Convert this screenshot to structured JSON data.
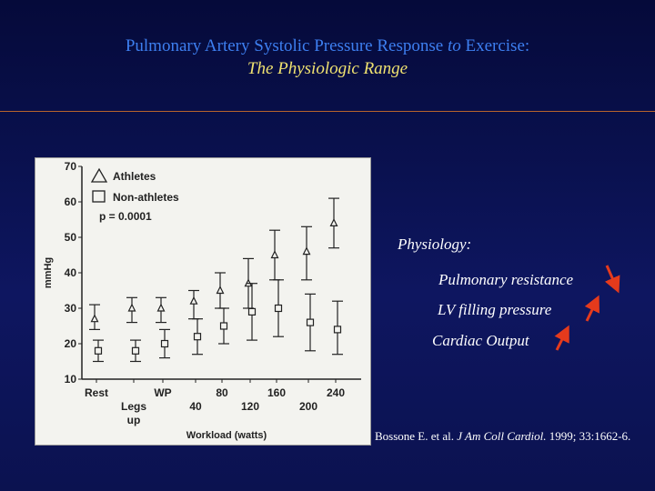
{
  "slide": {
    "title_part1": "Pulmonary Artery Systolic Pressure Response ",
    "title_italic": "to",
    "title_part2": " Exercise:",
    "subtitle": "The Physiologic Range",
    "physiology_heading": "Physiology:",
    "items": [
      {
        "label": "Pulmonary resistance",
        "arrow": "down"
      },
      {
        "label": "LV filling pressure",
        "arrow": "up"
      },
      {
        "label": "Cardiac Output",
        "arrow": "up"
      }
    ],
    "citation_pre": "Bossone E. et al. ",
    "citation_journal": "J Am Coll Cardiol.",
    "citation_post": " 1999; 33:1662-6."
  },
  "colors": {
    "title": "#3d7ff0",
    "subtitle": "#f0e270",
    "divider": "#b8642c",
    "arrow": "#e53a1c"
  },
  "chart_data": {
    "type": "scatter",
    "ylabel": "mmHg",
    "xlabel": "Workload (watts)",
    "ylim": [
      10,
      70
    ],
    "yticks": [
      10,
      20,
      30,
      40,
      50,
      60,
      70
    ],
    "xtick_labels": [
      "Rest",
      "Legs up",
      "WP",
      "40",
      "80",
      "120",
      "160",
      "200",
      "240"
    ],
    "annotation": "p = 0.0001",
    "legend": [
      {
        "name": "Athletes",
        "marker": "triangle"
      },
      {
        "name": "Non-athletes",
        "marker": "square"
      }
    ],
    "series": [
      {
        "name": "Athletes",
        "marker": "triangle",
        "x": [
          "Rest",
          "Legs up",
          "WP",
          "40",
          "80",
          "120",
          "160",
          "200",
          "240"
        ],
        "y": [
          27,
          30,
          30,
          32,
          35,
          37,
          45,
          46,
          54
        ],
        "err_low": [
          24,
          26,
          26,
          27,
          30,
          30,
          38,
          38,
          47
        ],
        "err_high": [
          31,
          33,
          33,
          35,
          40,
          44,
          52,
          53,
          61
        ]
      },
      {
        "name": "Non-athletes",
        "marker": "square",
        "x": [
          "Rest",
          "Legs up",
          "WP",
          "40",
          "80",
          "120",
          "160",
          "200",
          "240"
        ],
        "y": [
          18,
          18,
          20,
          22,
          25,
          29,
          30,
          26,
          24
        ],
        "err_low": [
          15,
          15,
          16,
          17,
          20,
          21,
          22,
          18,
          17
        ],
        "err_high": [
          21,
          21,
          24,
          27,
          30,
          37,
          38,
          34,
          32
        ]
      }
    ]
  }
}
